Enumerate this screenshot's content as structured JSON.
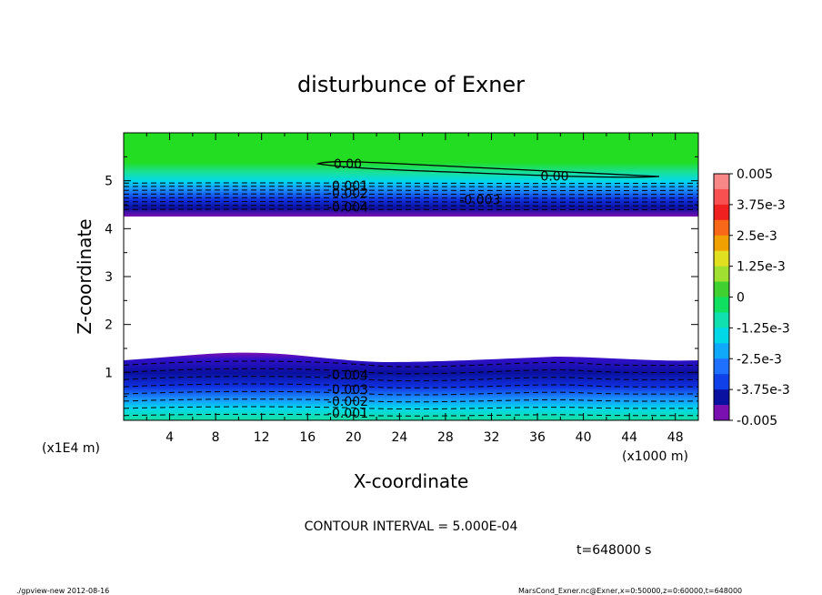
{
  "chart_data": {
    "type": "heatmap",
    "title": "disturbunce of Exner",
    "xlabel": "X-coordinate",
    "ylabel": "Z-coordinate",
    "x_unit": "(x1000 m)",
    "y_unit": "(x1E4 m)",
    "xlim": [
      0,
      50
    ],
    "ylim": [
      0,
      6
    ],
    "x_ticks": [
      "4",
      "8",
      "12",
      "16",
      "20",
      "24",
      "28",
      "32",
      "36",
      "40",
      "44",
      "48"
    ],
    "y_ticks": [
      "1",
      "2",
      "3",
      "4",
      "5"
    ],
    "colorbar": {
      "ticks": [
        "0.005",
        "3.75e-3",
        "2.5e-3",
        "1.25e-3",
        "0",
        "-1.25e-3",
        "-2.5e-3",
        "-3.75e-3",
        "-0.005"
      ],
      "range": [
        -0.005,
        0.005
      ]
    },
    "regions": [
      {
        "name": "upper-layer",
        "z_range": [
          4.3,
          6.0
        ],
        "value_range": [
          -0.005,
          0.0
        ]
      },
      {
        "name": "blank-middle",
        "z_range": [
          1.3,
          4.3
        ],
        "value_range": null
      },
      {
        "name": "lower-layer",
        "z_range": [
          0.0,
          1.3
        ],
        "value_range": [
          -0.005,
          -0.0005
        ]
      }
    ],
    "contour_labels": [
      {
        "text": "0.00",
        "x": 19.5,
        "z": 5.35
      },
      {
        "text": "0.00",
        "x": 37.5,
        "z": 5.1
      },
      {
        "text": "-0.001",
        "x": 19.5,
        "z": 4.9
      },
      {
        "text": "-0.002",
        "x": 19.5,
        "z": 4.75
      },
      {
        "text": "-0.003",
        "x": 31,
        "z": 4.6
      },
      {
        "text": "-0.004",
        "x": 19.5,
        "z": 4.45
      },
      {
        "text": "-0.004",
        "x": 19.5,
        "z": 0.95
      },
      {
        "text": "-0.003",
        "x": 19.5,
        "z": 0.65
      },
      {
        "text": "-0.002",
        "x": 19.5,
        "z": 0.4
      },
      {
        "text": "-0.001",
        "x": 19.5,
        "z": 0.15
      }
    ]
  },
  "contour_interval_text": "CONTOUR INTERVAL = 5.000E-04",
  "time_text": "t=648000 s",
  "footer_left": "./gpview-new   2012-08-16",
  "footer_right": "MarsCond_Exner.nc@Exner,x=0:50000,z=0:60000,t=648000"
}
